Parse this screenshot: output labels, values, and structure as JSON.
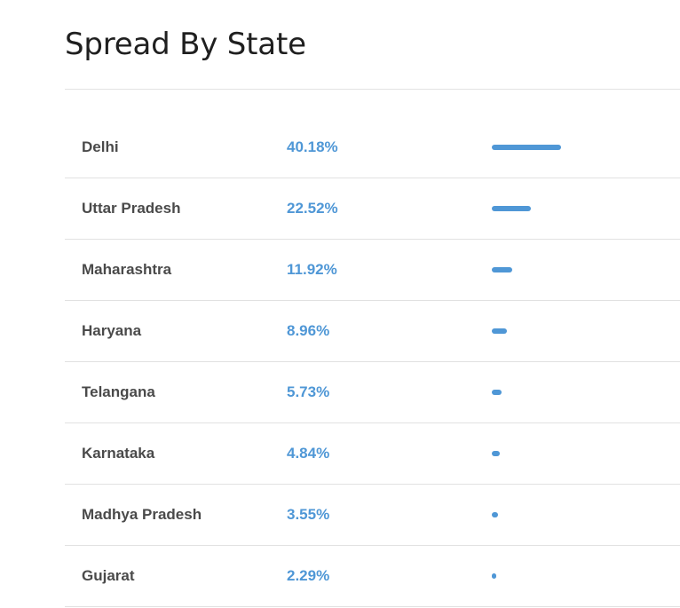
{
  "header": {
    "title": "Spread By State"
  },
  "table": {
    "bar_color": "#4f97d6",
    "rows": [
      {
        "state": "Delhi",
        "percent_label": "40.18%",
        "value": 40.18
      },
      {
        "state": "Uttar Pradesh",
        "percent_label": "22.52%",
        "value": 22.52
      },
      {
        "state": "Maharashtra",
        "percent_label": "11.92%",
        "value": 11.92
      },
      {
        "state": "Haryana",
        "percent_label": "8.96%",
        "value": 8.96
      },
      {
        "state": "Telangana",
        "percent_label": "5.73%",
        "value": 5.73
      },
      {
        "state": "Karnataka",
        "percent_label": "4.84%",
        "value": 4.84
      },
      {
        "state": "Madhya Pradesh",
        "percent_label": "3.55%",
        "value": 3.55
      },
      {
        "state": "Gujarat",
        "percent_label": "2.29%",
        "value": 2.29
      }
    ]
  }
}
